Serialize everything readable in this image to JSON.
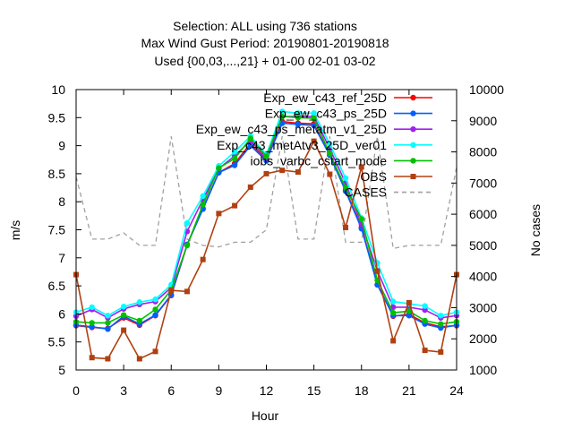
{
  "chart_data": {
    "type": "line",
    "title_lines": [
      "Selection: ALL using   736 stations",
      "Max Wind Gust   Period: 20190801-20190818",
      "Used {00,03,...,21} + 01-00 02-01 03-02"
    ],
    "xlabel": "Hour",
    "ylabel": "m/s",
    "y2label": "No cases",
    "xlim": [
      0,
      24
    ],
    "ylim": [
      5,
      10
    ],
    "y2lim": [
      1000,
      10000
    ],
    "xticks": [
      "0",
      "3",
      "6",
      "9",
      "12",
      "15",
      "18",
      "21",
      "24"
    ],
    "yticks": [
      "5",
      "5.5",
      "6",
      "6.5",
      "7",
      "7.5",
      "8",
      "8.5",
      "9",
      "9.5",
      "10"
    ],
    "y2ticks": [
      "1000",
      "2000",
      "3000",
      "4000",
      "5000",
      "6000",
      "7000",
      "8000",
      "9000",
      "10000"
    ],
    "grid": false,
    "legend_position": "top-right",
    "x": [
      0,
      1,
      2,
      3,
      4,
      5,
      6,
      7,
      8,
      9,
      10,
      11,
      12,
      13,
      14,
      15,
      16,
      17,
      18,
      19,
      20,
      21,
      22,
      23,
      24
    ],
    "series": [
      {
        "name": "Exp_ew_c43_ref_25D",
        "color": "#ff0000",
        "marker": "circle",
        "values": [
          5.79,
          5.76,
          5.74,
          5.93,
          5.8,
          5.97,
          6.33,
          7.23,
          7.88,
          8.52,
          8.68,
          9.04,
          8.75,
          9.43,
          9.4,
          9.39,
          8.83,
          8.21,
          7.55,
          6.52,
          5.96,
          5.99,
          5.84,
          5.77,
          5.79
        ]
      },
      {
        "name": "Exp_ew_c43_ps_25D",
        "color": "#0060ff",
        "marker": "circle",
        "values": [
          5.8,
          5.77,
          5.73,
          5.96,
          5.82,
          5.98,
          6.34,
          7.24,
          7.87,
          8.52,
          8.65,
          9.0,
          8.73,
          9.4,
          9.38,
          9.36,
          8.83,
          8.19,
          7.52,
          6.52,
          5.97,
          5.97,
          5.82,
          5.75,
          5.8
        ]
      },
      {
        "name": "Exp_ew_c43_ps_metatm_v1_25D",
        "color": "#a020f0",
        "marker": "circle",
        "values": [
          5.96,
          6.08,
          5.93,
          6.09,
          6.17,
          6.22,
          6.47,
          7.47,
          8.04,
          8.59,
          8.82,
          9.09,
          8.78,
          9.52,
          9.52,
          9.52,
          8.95,
          8.33,
          7.6,
          6.77,
          6.12,
          6.12,
          6.07,
          5.93,
          5.97
        ]
      },
      {
        "name": "Exp_c43_metAtv3_25D_ver01",
        "color": "#00ffff",
        "marker": "circle",
        "values": [
          6.03,
          6.12,
          5.97,
          6.13,
          6.21,
          6.26,
          6.52,
          7.62,
          8.1,
          8.64,
          8.89,
          9.17,
          8.84,
          9.61,
          9.58,
          9.58,
          9.03,
          8.42,
          7.71,
          6.91,
          6.22,
          6.18,
          6.14,
          5.97,
          6.03
        ]
      },
      {
        "name": "iobs_varbc_cstart_mode",
        "color": "#00c000",
        "marker": "circle",
        "values": [
          5.86,
          5.84,
          5.84,
          5.98,
          5.88,
          6.08,
          6.43,
          7.22,
          7.95,
          8.6,
          8.77,
          9.13,
          8.81,
          9.52,
          9.5,
          9.49,
          8.86,
          8.25,
          7.69,
          6.6,
          6.02,
          6.05,
          5.88,
          5.82,
          5.86
        ]
      },
      {
        "name": "OBS",
        "color": "#b04010",
        "marker": "square",
        "values": [
          6.7,
          5.22,
          5.2,
          5.71,
          5.2,
          5.33,
          6.42,
          6.4,
          6.97,
          7.79,
          7.93,
          8.26,
          8.5,
          8.56,
          8.53,
          9.08,
          8.49,
          7.54,
          8.62,
          6.76,
          5.52,
          6.2,
          5.35,
          5.32,
          6.7
        ]
      },
      {
        "name": "CASES",
        "color": "#a0a0a0",
        "axis": "y2",
        "dashed": true,
        "values": [
          7200,
          5200,
          5200,
          5400,
          5000,
          5000,
          8500,
          5200,
          5000,
          4950,
          5100,
          5100,
          5500,
          8500,
          5200,
          5200,
          8500,
          5100,
          5100,
          8500,
          4900,
          5000,
          5000,
          5000,
          7500
        ]
      }
    ]
  }
}
